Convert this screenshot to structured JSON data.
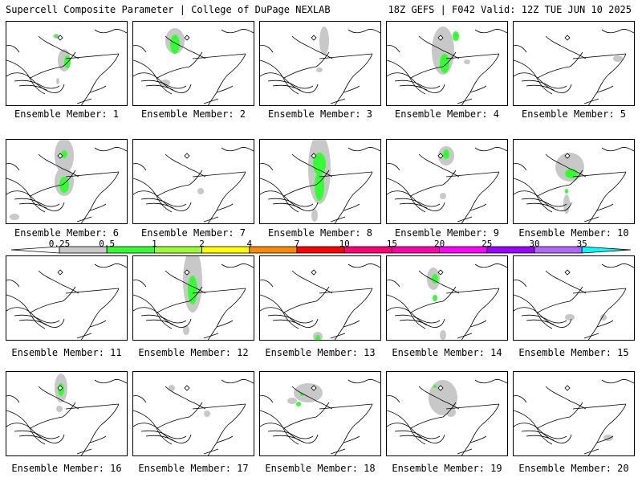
{
  "header": {
    "title": "Supercell Composite Parameter | College of DuPage NEXLAB",
    "run_info": "18Z GEFS | F042 Valid: 12Z TUE JUN 10 2025"
  },
  "panels": [
    {
      "label": "Ensemble Member: 1",
      "member": 1
    },
    {
      "label": "Ensemble Member: 2",
      "member": 2
    },
    {
      "label": "Ensemble Member: 3",
      "member": 3
    },
    {
      "label": "Ensemble Member: 4",
      "member": 4
    },
    {
      "label": "Ensemble Member: 5",
      "member": 5
    },
    {
      "label": "Ensemble Member: 6",
      "member": 6
    },
    {
      "label": "Ensemble Member: 7",
      "member": 7
    },
    {
      "label": "Ensemble Member: 8",
      "member": 8
    },
    {
      "label": "Ensemble Member: 9",
      "member": 9
    },
    {
      "label": "Ensemble Member: 10",
      "member": 10
    },
    {
      "label": "Ensemble Member: 11",
      "member": 11
    },
    {
      "label": "Ensemble Member: 12",
      "member": 12
    },
    {
      "label": "Ensemble Member: 13",
      "member": 13
    },
    {
      "label": "Ensemble Member: 14",
      "member": 14
    },
    {
      "label": "Ensemble Member: 15",
      "member": 15
    },
    {
      "label": "Ensemble Member: 16",
      "member": 16
    },
    {
      "label": "Ensemble Member: 17",
      "member": 17
    },
    {
      "label": "Ensemble Member: 18",
      "member": 18
    },
    {
      "label": "Ensemble Member: 19",
      "member": 19
    },
    {
      "label": "Ensemble Member: 20",
      "member": 20
    }
  ],
  "colorbar": {
    "ticks": [
      "0.25",
      "0.5",
      "1",
      "2",
      "4",
      "7",
      "10",
      "15",
      "20",
      "25",
      "30",
      "35"
    ],
    "colors": [
      "#c8c8c8",
      "#33ff33",
      "#99ff33",
      "#ffff00",
      "#ff8800",
      "#ff0000",
      "#ff0077",
      "#ff00aa",
      "#ff00ff",
      "#9900ff",
      "#b266ff",
      "#00ffff"
    ],
    "low_end_color": "#ffffff",
    "high_end_color": "#00ffff"
  },
  "colors": {
    "coastline": "#000000",
    "gray_fill": "#c8c8c8",
    "green_fill": "#33ff33",
    "lime_fill": "#99ff33"
  }
}
